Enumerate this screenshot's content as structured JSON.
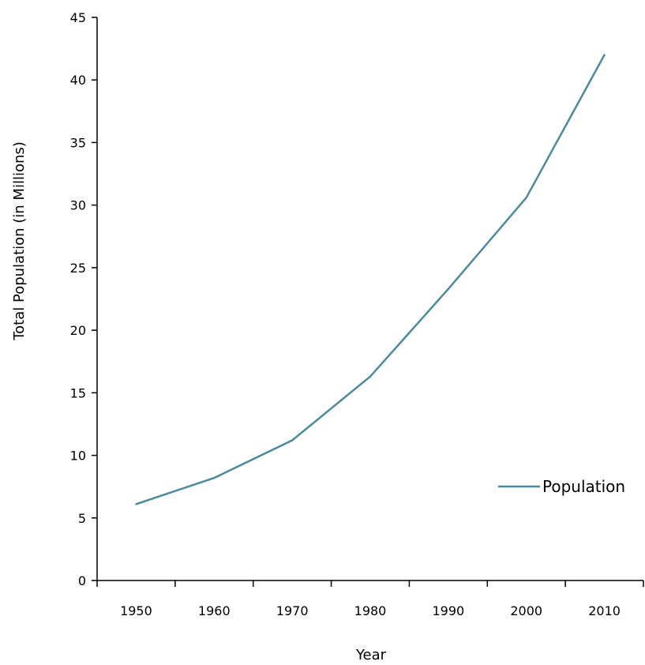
{
  "chart_data": {
    "type": "line",
    "title": "",
    "xlabel": "Year",
    "ylabel": "Total Population  (in Millions)",
    "categories": [
      "1950",
      "1960",
      "1970",
      "1980",
      "1990",
      "2000",
      "2010"
    ],
    "yticks": [
      "0",
      "5",
      "10",
      "15",
      "20",
      "25",
      "30",
      "35",
      "40",
      "45"
    ],
    "ylim": [
      0,
      45
    ],
    "grid": false,
    "legend_position": "right",
    "series": [
      {
        "name": "Population",
        "color": "#4a8a9c",
        "values": [
          6.1,
          8.2,
          11.2,
          16.3,
          23.3,
          30.6,
          42.0
        ]
      }
    ]
  }
}
